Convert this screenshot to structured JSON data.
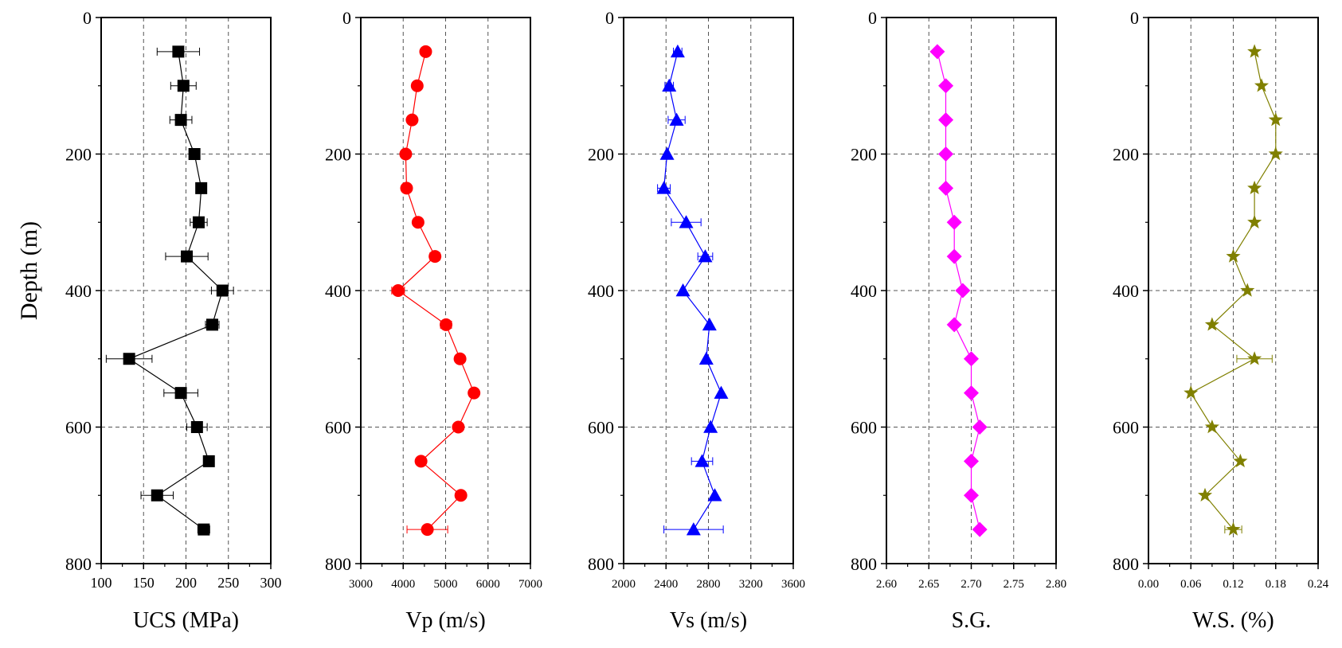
{
  "shared": {
    "ylabel": "Depth (m)",
    "ylim": [
      0,
      800
    ],
    "y_ticks": [
      0,
      200,
      400,
      600,
      800
    ],
    "y_tick_labels": [
      "0",
      "200",
      "400",
      "600",
      "800"
    ]
  },
  "chart_data": [
    {
      "type": "scatter",
      "xlabel": "UCS (MPa)",
      "ylabel": "Depth (m)",
      "xlim": [
        100,
        300
      ],
      "ylim": [
        0,
        800
      ],
      "y_inverted": true,
      "x_ticks": [
        100,
        150,
        200,
        250,
        300
      ],
      "x_tick_labels": [
        "100",
        "150",
        "200",
        "250",
        "300"
      ],
      "grid": true,
      "color": "#000000",
      "marker": "square",
      "series": [
        {
          "depth": [
            50,
            100,
            150,
            200,
            250,
            300,
            350,
            400,
            450,
            500,
            550,
            600,
            650,
            700,
            750
          ],
          "values": [
            191,
            197,
            194,
            210,
            218,
            215,
            201,
            243,
            231,
            133,
            194,
            213,
            227,
            166,
            221
          ],
          "errors": [
            25,
            15,
            13,
            4,
            4,
            10,
            25,
            13,
            8,
            27,
            20,
            12,
            4,
            19,
            7
          ]
        }
      ]
    },
    {
      "type": "scatter",
      "xlabel": "Vp (m/s)",
      "ylabel": "Depth (m)",
      "xlim": [
        3000,
        7000
      ],
      "ylim": [
        0,
        800
      ],
      "y_inverted": true,
      "x_ticks": [
        3000,
        4000,
        5000,
        6000,
        7000
      ],
      "x_tick_labels": [
        "3000",
        "4000",
        "5000",
        "6000",
        "7000"
      ],
      "grid": true,
      "color": "#ff0000",
      "marker": "circle",
      "series": [
        {
          "depth": [
            50,
            100,
            150,
            200,
            250,
            300,
            350,
            400,
            450,
            500,
            550,
            600,
            650,
            700,
            750
          ],
          "values": [
            4530,
            4330,
            4210,
            4060,
            4080,
            4350,
            4750,
            3880,
            5010,
            5340,
            5670,
            5300,
            4420,
            5360,
            4570
          ],
          "errors": [
            0,
            0,
            0,
            0,
            0,
            0,
            120,
            150,
            130,
            0,
            0,
            0,
            0,
            0,
            480
          ]
        }
      ]
    },
    {
      "type": "scatter",
      "xlabel": "Vs (m/s)",
      "ylabel": "Depth (m)",
      "xlim": [
        2000,
        3600
      ],
      "ylim": [
        0,
        800
      ],
      "y_inverted": true,
      "x_ticks": [
        2000,
        2400,
        2800,
        3200,
        3600
      ],
      "x_tick_labels": [
        "2000",
        "2400",
        "2800",
        "3200",
        "3600"
      ],
      "grid": true,
      "color": "#0000ff",
      "marker": "triangle",
      "series": [
        {
          "depth": [
            50,
            100,
            150,
            200,
            250,
            300,
            350,
            400,
            450,
            500,
            550,
            600,
            650,
            700,
            750
          ],
          "values": [
            2510,
            2430,
            2500,
            2410,
            2380,
            2590,
            2770,
            2560,
            2810,
            2780,
            2920,
            2820,
            2740,
            2860,
            2660
          ],
          "errors": [
            40,
            40,
            80,
            0,
            60,
            140,
            70,
            0,
            0,
            0,
            0,
            0,
            100,
            0,
            280
          ]
        }
      ]
    },
    {
      "type": "scatter",
      "xlabel": "S.G.",
      "ylabel": "Depth (m)",
      "xlim": [
        2.6,
        2.8
      ],
      "ylim": [
        0,
        800
      ],
      "y_inverted": true,
      "x_ticks": [
        2.6,
        2.65,
        2.7,
        2.75,
        2.8
      ],
      "x_tick_labels": [
        "2.60",
        "2.65",
        "2.70",
        "2.75",
        "2.80"
      ],
      "grid": true,
      "color": "#ff00ff",
      "marker": "diamond",
      "series": [
        {
          "depth": [
            50,
            100,
            150,
            200,
            250,
            300,
            350,
            400,
            450,
            500,
            550,
            600,
            650,
            700,
            750
          ],
          "values": [
            2.66,
            2.67,
            2.67,
            2.67,
            2.67,
            2.68,
            2.68,
            2.69,
            2.68,
            2.7,
            2.7,
            2.71,
            2.7,
            2.7,
            2.71
          ],
          "errors": [
            0,
            0,
            0,
            0,
            0,
            0,
            0,
            0,
            0,
            0,
            0,
            0,
            0,
            0,
            0
          ]
        }
      ]
    },
    {
      "type": "scatter",
      "xlabel": "W.S. (%)",
      "ylabel": "Depth (m)",
      "xlim": [
        0,
        0.24
      ],
      "ylim": [
        0,
        800
      ],
      "y_inverted": true,
      "x_ticks": [
        0,
        0.06,
        0.12,
        0.18,
        0.24
      ],
      "x_tick_labels": [
        "0.00",
        "0.06",
        "0.12",
        "0.18",
        "0.24"
      ],
      "grid": true,
      "color": "#808000",
      "marker": "star",
      "series": [
        {
          "depth": [
            50,
            100,
            150,
            200,
            250,
            300,
            350,
            400,
            450,
            500,
            550,
            600,
            650,
            700,
            750
          ],
          "values": [
            0.15,
            0.16,
            0.18,
            0.18,
            0.15,
            0.15,
            0.12,
            0.14,
            0.09,
            0.15,
            0.06,
            0.09,
            0.13,
            0.08,
            0.12
          ],
          "errors": [
            0,
            0,
            0,
            0,
            0,
            0,
            0,
            0,
            0,
            0.025,
            0,
            0,
            0,
            0,
            0.012
          ]
        }
      ]
    }
  ]
}
